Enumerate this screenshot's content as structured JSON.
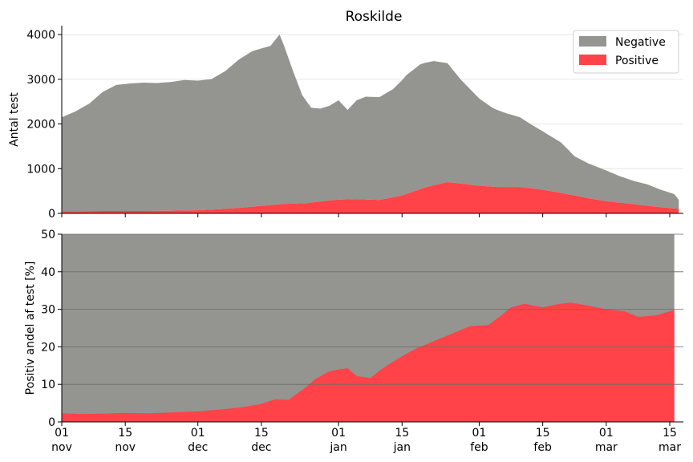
{
  "colors": {
    "negative": "#949591",
    "positive": "#ff4348",
    "grid_top": "#e6e6e6",
    "grid_bottom": "#6a6a6a"
  },
  "chart_data": [
    {
      "type": "area",
      "stacked": true,
      "title": "Roskilde",
      "ylabel": "Antal test",
      "ylim": [
        0,
        4200
      ],
      "yticks": [
        0,
        1000,
        2000,
        3000,
        4000
      ],
      "xlim": [
        "2020-11-01",
        "2021-03-18"
      ],
      "grid": "horizontal",
      "legend": {
        "placement": "top-right",
        "entries": [
          {
            "label": "Negative",
            "color": "#949591"
          },
          {
            "label": "Positive",
            "color": "#ff4348"
          }
        ]
      },
      "series": [
        {
          "name": "Positive",
          "x": [
            "2020-11-01",
            "2020-11-05",
            "2020-11-10",
            "2020-11-15",
            "2020-11-20",
            "2020-11-25",
            "2020-12-01",
            "2020-12-05",
            "2020-12-10",
            "2020-12-15",
            "2020-12-20",
            "2020-12-25",
            "2021-01-01",
            "2021-01-05",
            "2021-01-10",
            "2021-01-15",
            "2021-01-20",
            "2021-01-25",
            "2021-02-01",
            "2021-02-05",
            "2021-02-10",
            "2021-02-15",
            "2021-02-20",
            "2021-02-25",
            "2021-03-01",
            "2021-03-05",
            "2021-03-10",
            "2021-03-17"
          ],
          "values": [
            50,
            50,
            55,
            55,
            55,
            60,
            70,
            90,
            120,
            170,
            210,
            230,
            310,
            320,
            300,
            400,
            580,
            700,
            620,
            590,
            590,
            530,
            440,
            340,
            270,
            230,
            170,
            100
          ]
        },
        {
          "name": "Negative",
          "x": [
            "2020-11-01",
            "2020-11-04",
            "2020-11-07",
            "2020-11-10",
            "2020-11-13",
            "2020-11-16",
            "2020-11-19",
            "2020-11-22",
            "2020-11-25",
            "2020-11-28",
            "2020-12-01",
            "2020-12-04",
            "2020-12-07",
            "2020-12-10",
            "2020-12-13",
            "2020-12-15",
            "2020-12-17",
            "2020-12-19",
            "2020-12-20",
            "2020-12-22",
            "2020-12-24",
            "2020-12-26",
            "2020-12-28",
            "2020-12-30",
            "2021-01-01",
            "2021-01-03",
            "2021-01-05",
            "2021-01-07",
            "2021-01-10",
            "2021-01-13",
            "2021-01-16",
            "2021-01-19",
            "2021-01-22",
            "2021-01-25",
            "2021-01-28",
            "2021-02-01",
            "2021-02-04",
            "2021-02-07",
            "2021-02-10",
            "2021-02-13",
            "2021-02-16",
            "2021-02-19",
            "2021-02-22",
            "2021-02-25",
            "2021-03-01",
            "2021-03-04",
            "2021-03-07",
            "2021-03-10",
            "2021-03-13",
            "2021-03-16",
            "2021-03-17"
          ],
          "values": [
            2100,
            2230,
            2400,
            2660,
            2820,
            2850,
            2870,
            2860,
            2880,
            2920,
            2900,
            2920,
            3080,
            3320,
            3480,
            3520,
            3560,
            3800,
            3540,
            2960,
            2420,
            2120,
            2080,
            2120,
            2220,
            2000,
            2210,
            2300,
            2300,
            2420,
            2660,
            2790,
            2780,
            2660,
            2320,
            1950,
            1760,
            1650,
            1560,
            1400,
            1260,
            1130,
            880,
            780,
            690,
            590,
            520,
            480,
            390,
            320,
            200
          ]
        }
      ]
    },
    {
      "type": "area",
      "stacked": true,
      "ylabel": "Positiv andel af test [%]",
      "ylim": [
        0,
        50
      ],
      "yticks": [
        0,
        10,
        20,
        30,
        40,
        50
      ],
      "xlim": [
        "2020-11-01",
        "2021-03-18"
      ],
      "grid": "horizontal",
      "xticks": [
        {
          "date": "2020-11-01",
          "day": "01",
          "month": "nov"
        },
        {
          "date": "2020-11-15",
          "day": "15",
          "month": "nov"
        },
        {
          "date": "2020-12-01",
          "day": "01",
          "month": "dec"
        },
        {
          "date": "2020-12-15",
          "day": "15",
          "month": "dec"
        },
        {
          "date": "2021-01-01",
          "day": "01",
          "month": "jan"
        },
        {
          "date": "2021-01-15",
          "day": "15",
          "month": "jan"
        },
        {
          "date": "2021-02-01",
          "day": "01",
          "month": "feb"
        },
        {
          "date": "2021-02-15",
          "day": "15",
          "month": "feb"
        },
        {
          "date": "2021-03-01",
          "day": "01",
          "month": "mar"
        },
        {
          "date": "2021-03-15",
          "day": "15",
          "month": "mar"
        }
      ],
      "series": [
        {
          "name": "Positive",
          "x": [
            "2020-11-01",
            "2020-11-05",
            "2020-11-10",
            "2020-11-15",
            "2020-11-20",
            "2020-11-25",
            "2020-12-01",
            "2020-12-05",
            "2020-12-10",
            "2020-12-15",
            "2020-12-18",
            "2020-12-21",
            "2020-12-24",
            "2020-12-27",
            "2020-12-30",
            "2021-01-01",
            "2021-01-03",
            "2021-01-05",
            "2021-01-08",
            "2021-01-11",
            "2021-01-15",
            "2021-01-18",
            "2021-01-22",
            "2021-01-26",
            "2021-01-30",
            "2021-02-03",
            "2021-02-06",
            "2021-02-08",
            "2021-02-11",
            "2021-02-15",
            "2021-02-18",
            "2021-02-21",
            "2021-02-25",
            "2021-03-01",
            "2021-03-05",
            "2021-03-08",
            "2021-03-12",
            "2021-03-16"
          ],
          "values": [
            2.3,
            2.1,
            2.2,
            2.4,
            2.3,
            2.5,
            2.8,
            3.2,
            3.8,
            4.8,
            6.0,
            5.9,
            8.5,
            11.5,
            13.5,
            14.0,
            14.3,
            12.2,
            11.7,
            14.5,
            17.5,
            19.5,
            21.5,
            23.5,
            25.5,
            25.8,
            28.5,
            30.5,
            31.5,
            30.5,
            31.3,
            31.8,
            31.0,
            30.0,
            29.5,
            28.0,
            28.4,
            29.8
          ]
        },
        {
          "name": "Negative",
          "x": [
            "2020-11-01",
            "2021-03-16"
          ],
          "values": [
            50,
            50
          ]
        }
      ]
    }
  ]
}
